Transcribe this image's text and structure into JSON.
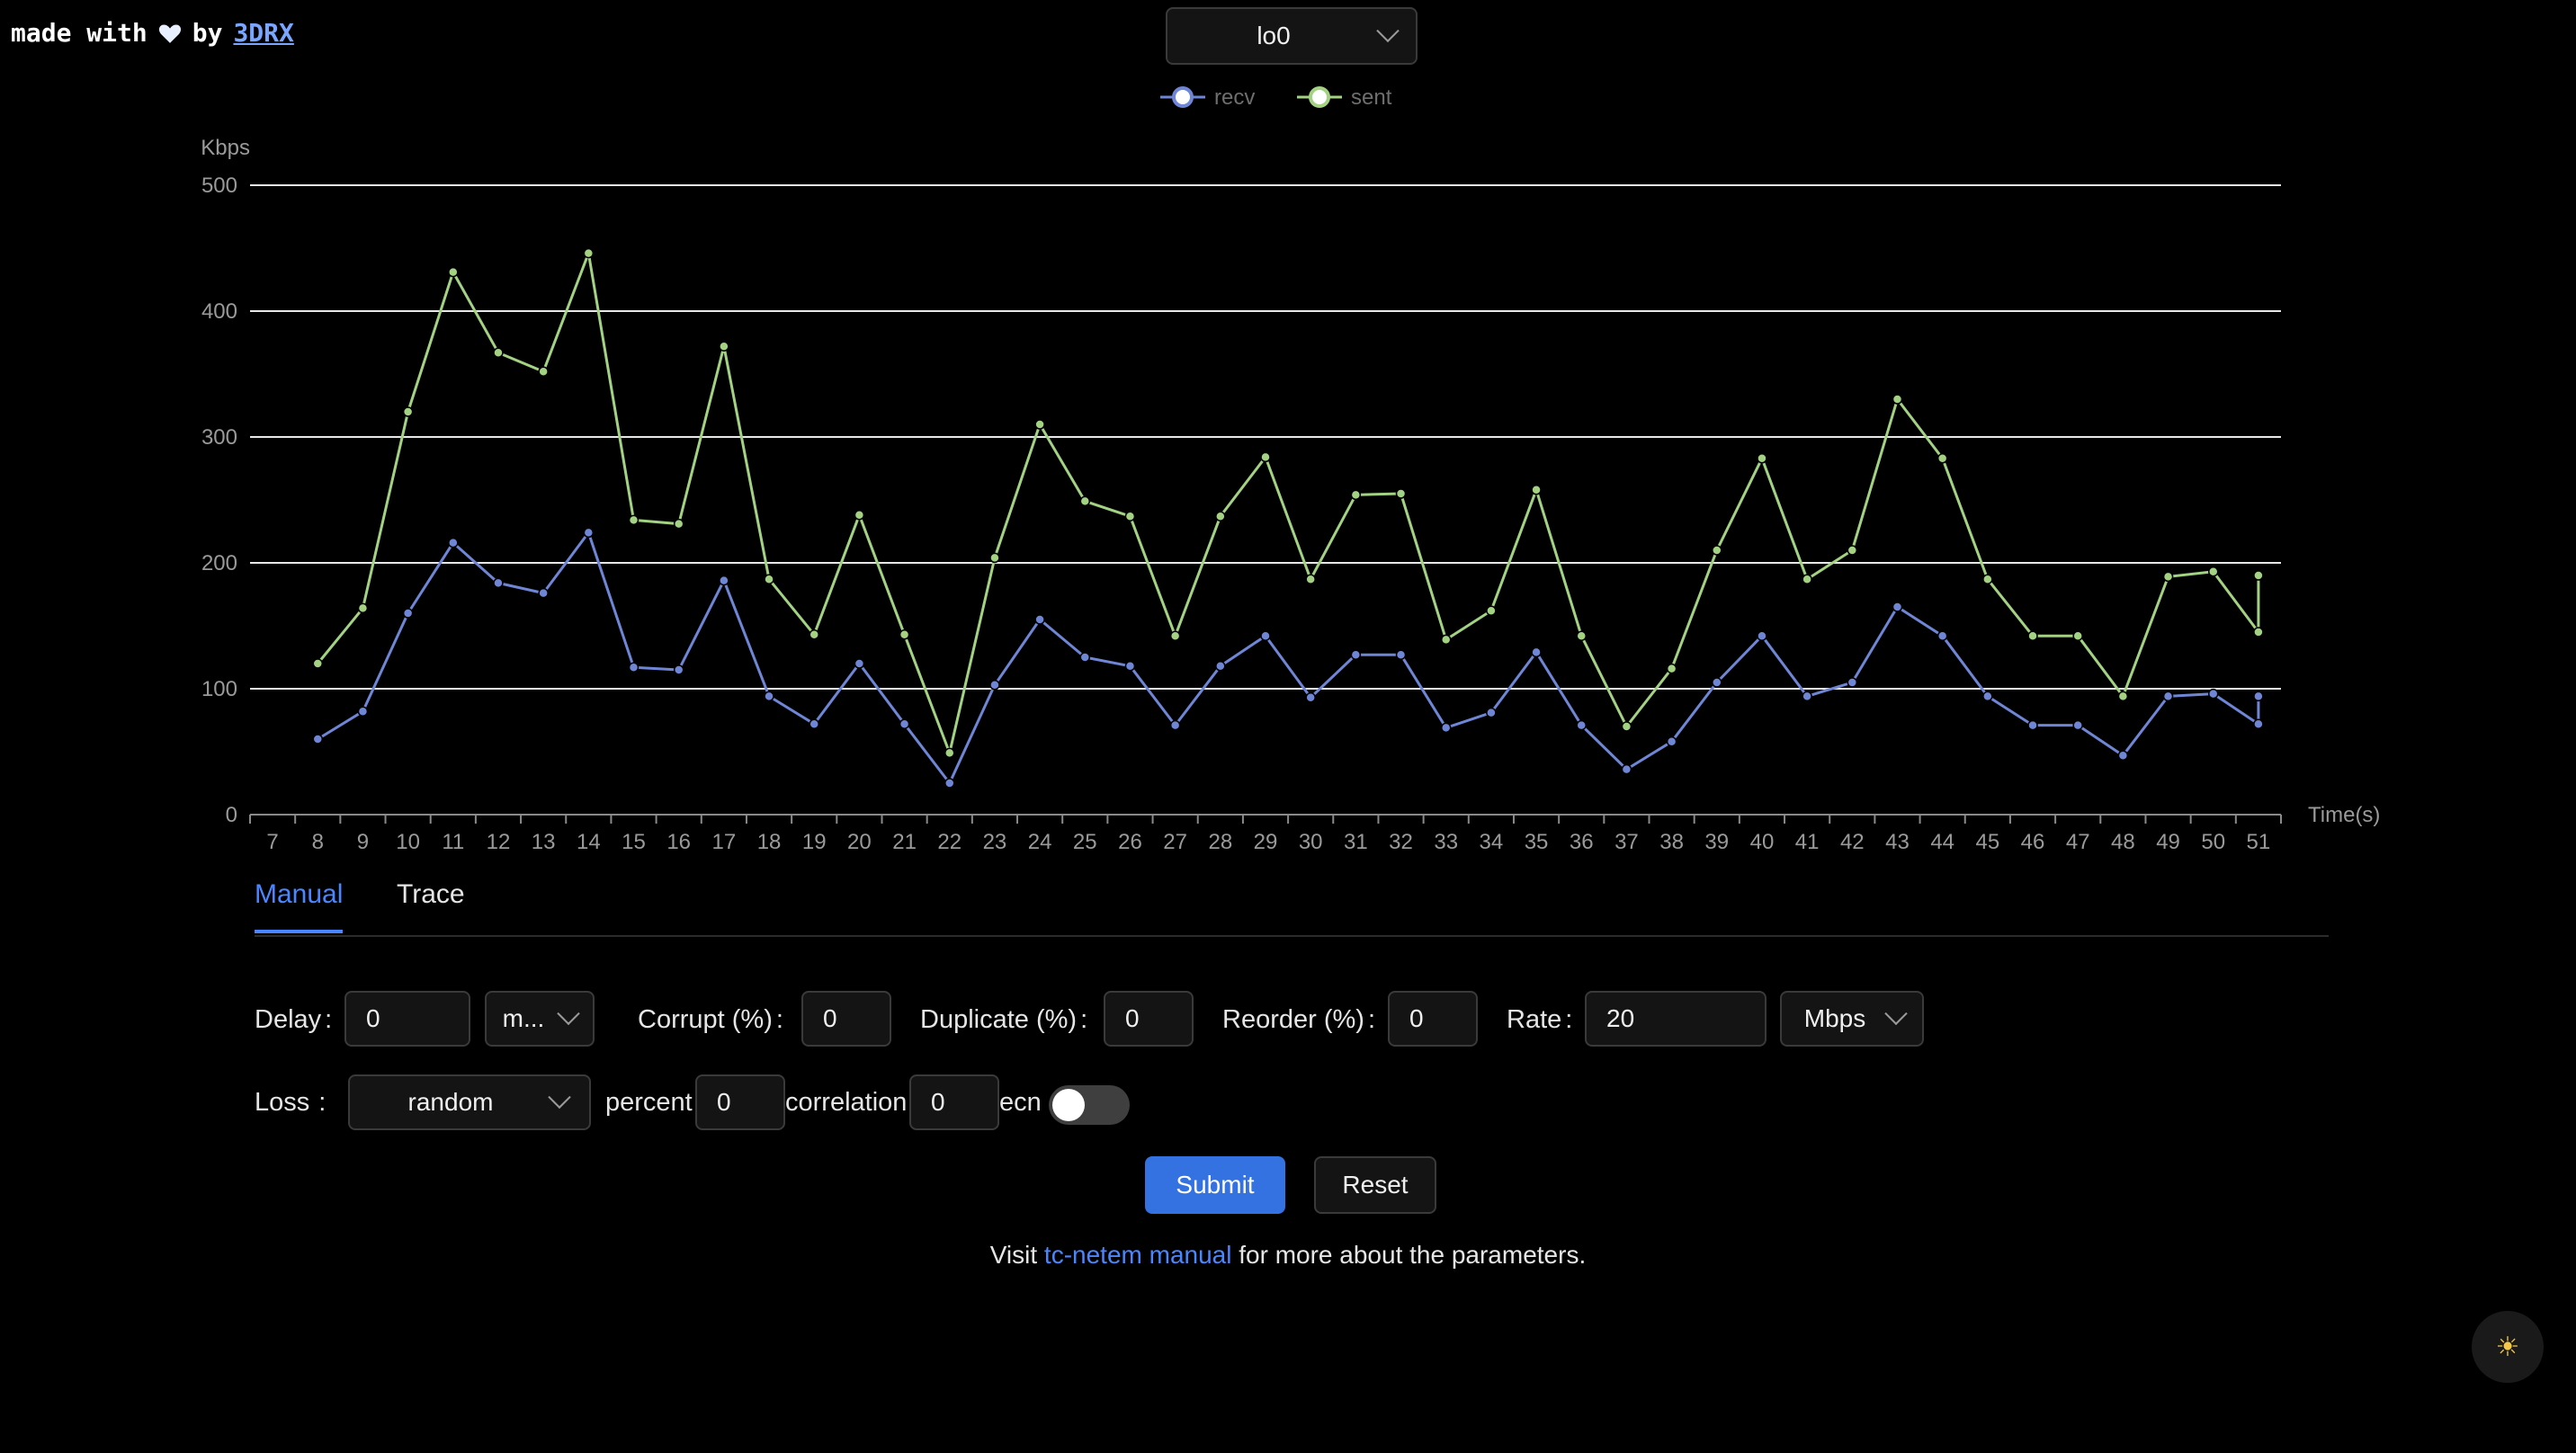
{
  "header": {
    "made_with_prefix": "made with",
    "made_with_by": "by",
    "author_link": "3DRX"
  },
  "interface_select": {
    "value": "lo0"
  },
  "chart_data": {
    "type": "line",
    "ylabel": "Kbps",
    "xlabel": "Time(s)",
    "ylim": [
      0,
      500
    ],
    "yticks": [
      0,
      100,
      200,
      300,
      400,
      500
    ],
    "grid": true,
    "legend": "top-center",
    "x": [
      7,
      8,
      9,
      10,
      11,
      12,
      13,
      14,
      15,
      16,
      17,
      18,
      19,
      20,
      21,
      22,
      23,
      24,
      25,
      26,
      27,
      28,
      29,
      30,
      31,
      32,
      33,
      34,
      35,
      36,
      37,
      38,
      39,
      40,
      41,
      42,
      43,
      44,
      45,
      46,
      47,
      48,
      49,
      50,
      51
    ],
    "series": [
      {
        "name": "recv",
        "color": "#6f86d6",
        "points": [
          [
            8,
            60
          ],
          [
            9,
            82
          ],
          [
            10,
            160
          ],
          [
            11,
            216
          ],
          [
            12,
            184
          ],
          [
            13,
            176
          ],
          [
            14,
            224
          ],
          [
            15,
            117
          ],
          [
            16,
            115
          ],
          [
            17,
            186
          ],
          [
            18,
            94
          ],
          [
            19,
            72
          ],
          [
            20,
            120
          ],
          [
            21,
            72
          ],
          [
            22,
            25
          ],
          [
            23,
            103
          ],
          [
            24,
            155
          ],
          [
            25,
            125
          ],
          [
            26,
            118
          ],
          [
            27,
            71
          ],
          [
            28,
            118
          ],
          [
            29,
            142
          ],
          [
            30,
            93
          ],
          [
            31,
            127
          ],
          [
            32,
            127
          ],
          [
            33,
            69
          ],
          [
            34,
            81
          ],
          [
            35,
            129
          ],
          [
            36,
            71
          ],
          [
            37,
            36
          ],
          [
            38,
            58
          ],
          [
            39,
            105
          ],
          [
            40,
            142
          ],
          [
            41,
            94
          ],
          [
            42,
            105
          ],
          [
            43,
            165
          ],
          [
            44,
            142
          ],
          [
            45,
            94
          ],
          [
            46,
            71
          ],
          [
            47,
            71
          ],
          [
            48,
            47
          ],
          [
            49,
            94
          ],
          [
            50,
            96
          ],
          [
            51,
            72
          ],
          [
            51,
            94
          ]
        ]
      },
      {
        "name": "sent",
        "color": "#a3d283",
        "points": [
          [
            8,
            120
          ],
          [
            9,
            164
          ],
          [
            10,
            320
          ],
          [
            11,
            431
          ],
          [
            12,
            367
          ],
          [
            13,
            352
          ],
          [
            14,
            446
          ],
          [
            15,
            234
          ],
          [
            16,
            231
          ],
          [
            17,
            372
          ],
          [
            18,
            187
          ],
          [
            19,
            143
          ],
          [
            20,
            238
          ],
          [
            21,
            143
          ],
          [
            22,
            49
          ],
          [
            23,
            204
          ],
          [
            24,
            310
          ],
          [
            25,
            249
          ],
          [
            26,
            237
          ],
          [
            27,
            142
          ],
          [
            28,
            237
          ],
          [
            29,
            284
          ],
          [
            30,
            187
          ],
          [
            31,
            254
          ],
          [
            32,
            255
          ],
          [
            33,
            139
          ],
          [
            34,
            162
          ],
          [
            35,
            258
          ],
          [
            36,
            142
          ],
          [
            37,
            70
          ],
          [
            38,
            116
          ],
          [
            39,
            210
          ],
          [
            40,
            283
          ],
          [
            41,
            187
          ],
          [
            42,
            210
          ],
          [
            43,
            330
          ],
          [
            44,
            283
          ],
          [
            45,
            187
          ],
          [
            46,
            142
          ],
          [
            47,
            142
          ],
          [
            48,
            94
          ],
          [
            49,
            189
          ],
          [
            50,
            193
          ],
          [
            51,
            145
          ],
          [
            51,
            190
          ]
        ]
      }
    ]
  },
  "tabs": [
    {
      "label": "Manual",
      "active": true
    },
    {
      "label": "Trace",
      "active": false
    }
  ],
  "form": {
    "delay_label": "Delay",
    "delay_value": "0",
    "delay_unit": "m...",
    "corrupt_label": "Corrupt (%)",
    "corrupt_value": "0",
    "duplicate_label": "Duplicate (%)",
    "duplicate_value": "0",
    "reorder_label": "Reorder (%)",
    "reorder_value": "0",
    "rate_label": "Rate",
    "rate_value": "20",
    "rate_unit": "Mbps",
    "loss_label": "Loss",
    "loss_mode": "random",
    "percent_label": "percent",
    "percent_value": "0",
    "correlation_label": "correlation",
    "correlation_value": "0",
    "ecn_label": "ecn",
    "ecn_on": false,
    "colon": ":"
  },
  "buttons": {
    "submit": "Submit",
    "reset": "Reset"
  },
  "note": {
    "prefix": "Visit",
    "link": "tc-netem manual",
    "suffix": "for more about the parameters."
  },
  "theme_toggle": {
    "icon": "sun-icon"
  }
}
